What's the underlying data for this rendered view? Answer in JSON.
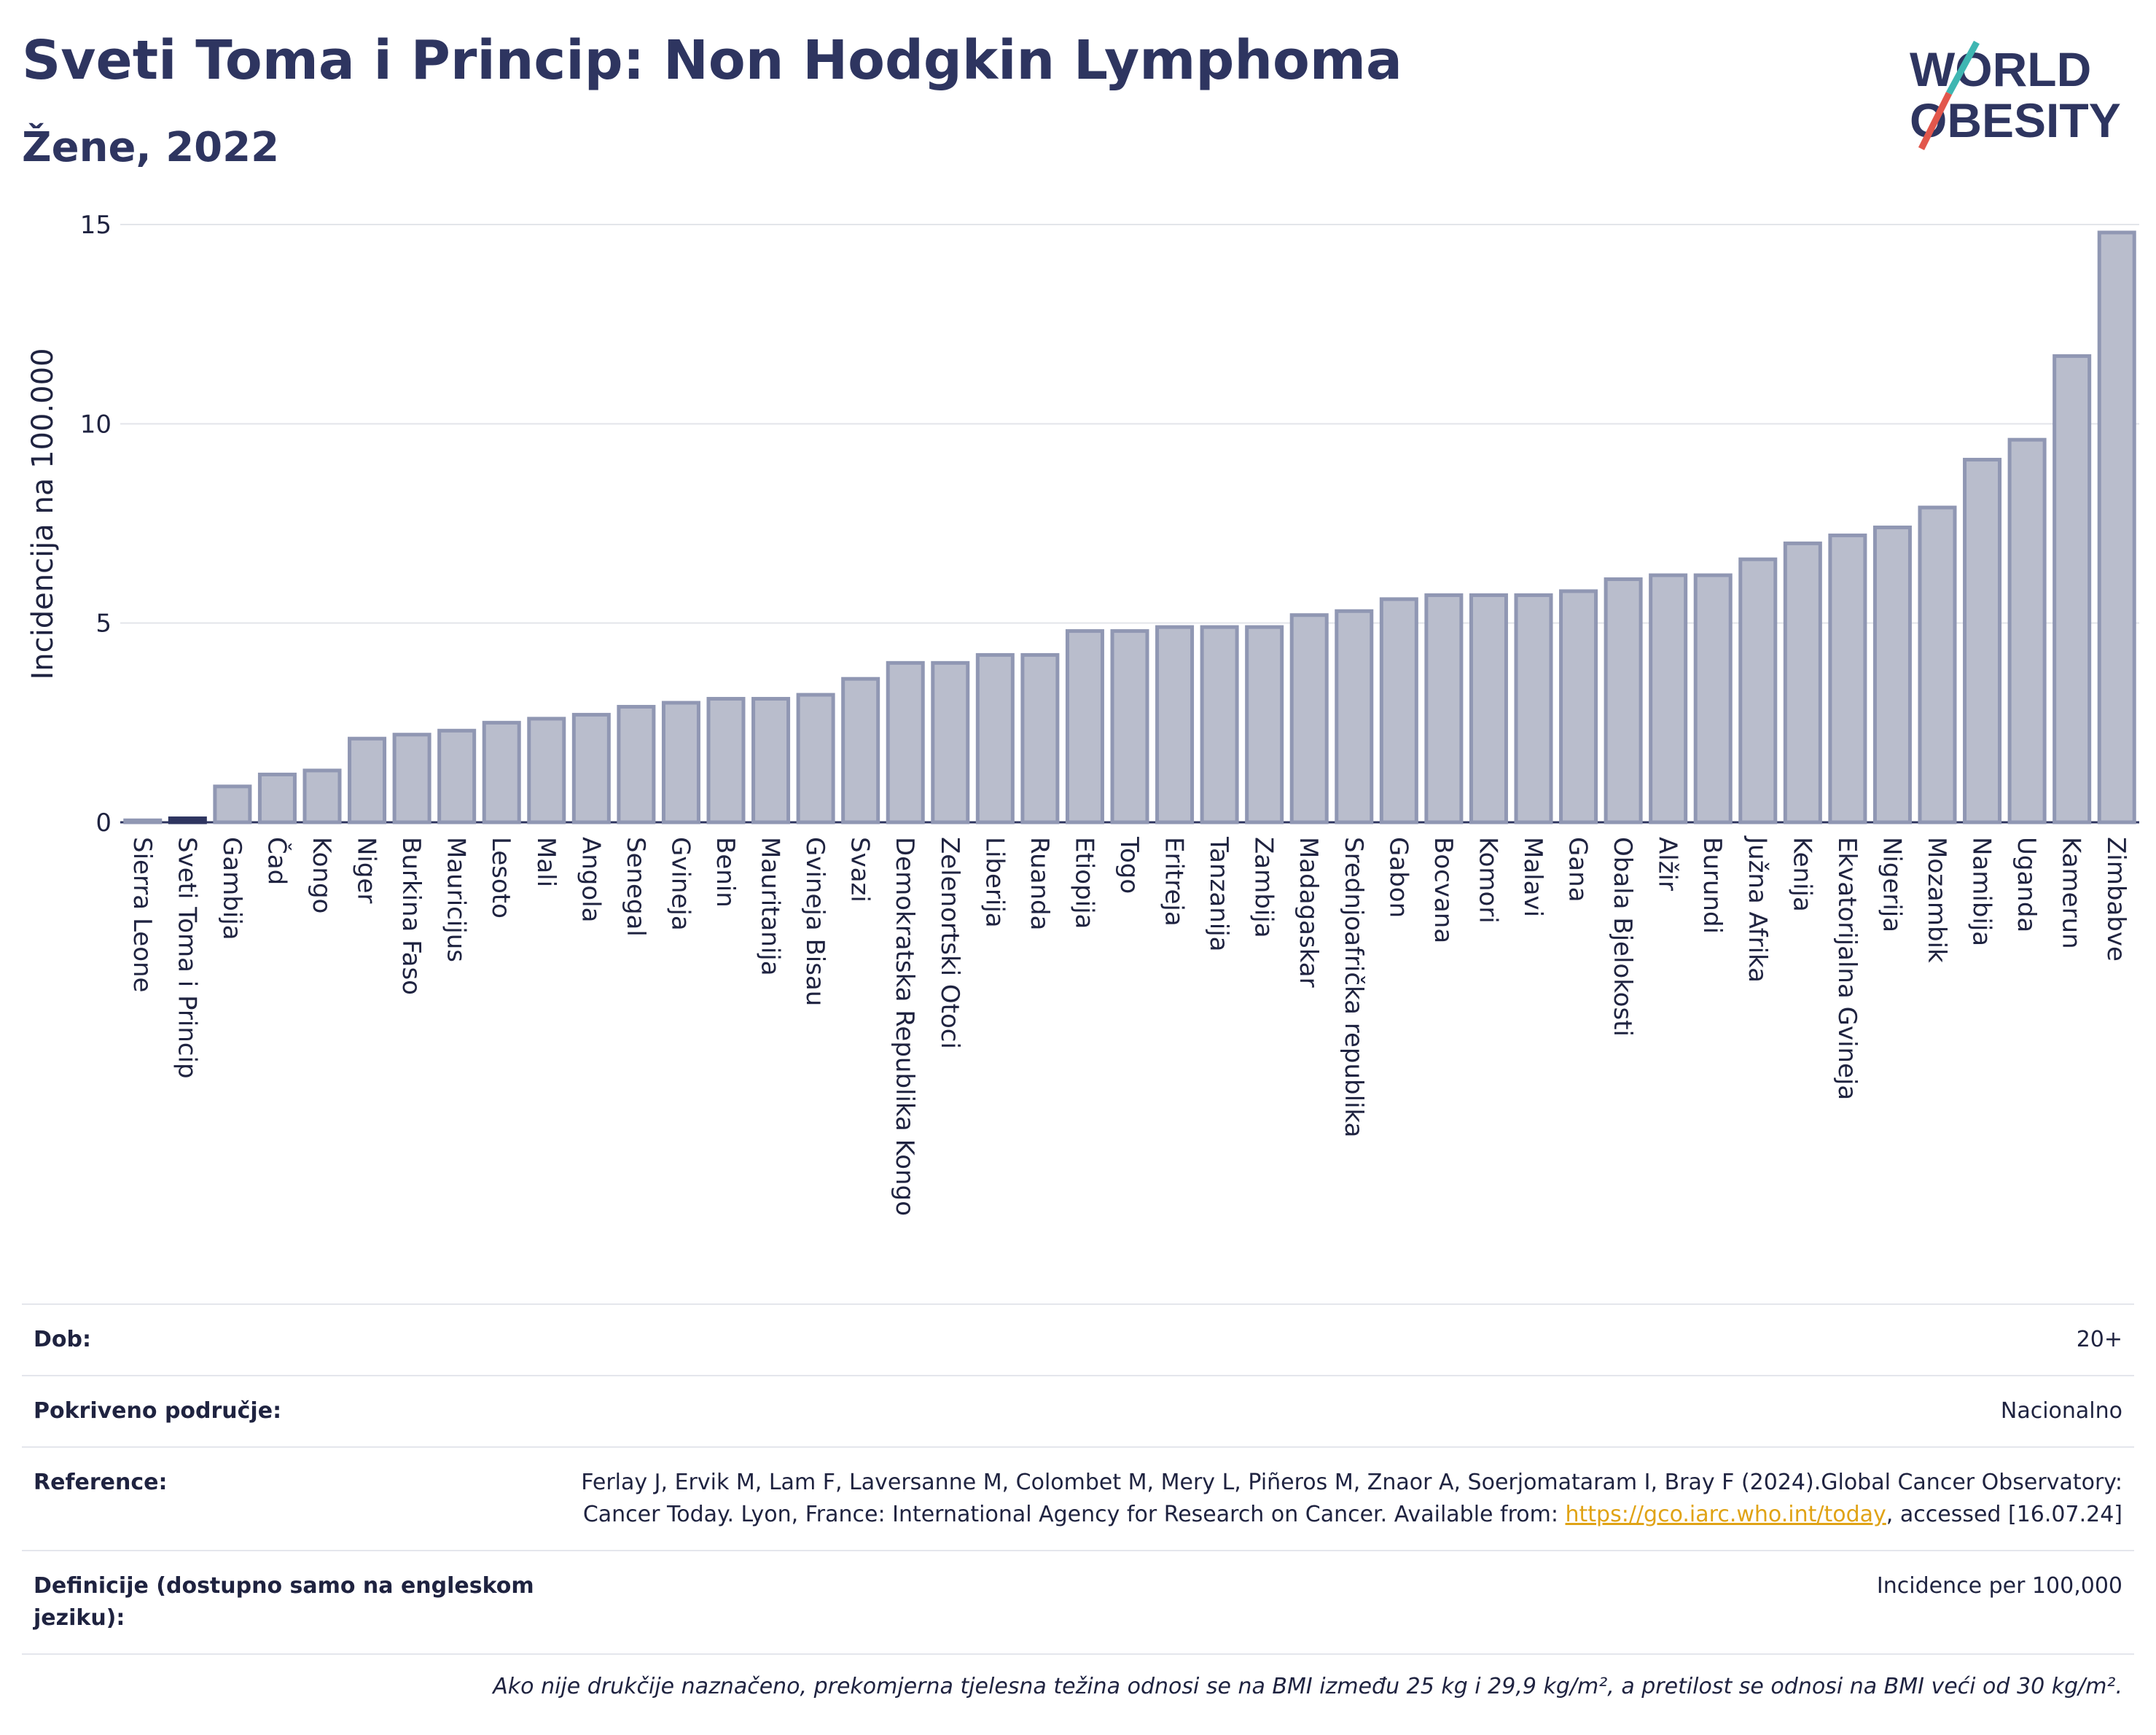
{
  "header": {
    "title": "Sveti Toma i Princip: Non Hodgkin Lymphoma",
    "subtitle": "Žene, 2022",
    "logo_line1": "WORLD",
    "logo_line2": "OBESITY"
  },
  "colors": {
    "bar": "#b9bdcc",
    "bar_stroke": "#9097b3",
    "highlight": "#2e3560",
    "title": "#2e3560",
    "logo_teal": "#3fb6b2",
    "logo_red": "#e2574c"
  },
  "chart_data": {
    "type": "bar",
    "ylabel": "Incidencija na 100.000",
    "ylim": [
      0,
      15
    ],
    "yticks": [
      0,
      5,
      10,
      15
    ],
    "grid": true,
    "highlight": "Sveti Toma i Princip",
    "categories": [
      "Sierra Leone",
      "Sveti Toma i Princip",
      "Gambija",
      "Čad",
      "Kongo",
      "Niger",
      "Burkina Faso",
      "Mauricijus",
      "Lesoto",
      "Mali",
      "Angola",
      "Senegal",
      "Gvineja",
      "Benin",
      "Mauritanija",
      "Gvineja Bisau",
      "Svazi",
      "Demokratska Republika Kongo",
      "Zelenortski Otoci",
      "Liberija",
      "Ruanda",
      "Etiopija",
      "Togo",
      "Eritreja",
      "Tanzanija",
      "Zambija",
      "Madagaskar",
      "Srednjoafrička republika",
      "Gabon",
      "Bocvana",
      "Komori",
      "Malavi",
      "Gana",
      "Obala Bjelokosti",
      "Alžir",
      "Burundi",
      "Južna Afrika",
      "Kenija",
      "Ekvatorijalna Gvineja",
      "Nigerija",
      "Mozambik",
      "Namibija",
      "Uganda",
      "Kamerun",
      "Zimbabve"
    ],
    "values": [
      0.05,
      0.1,
      0.9,
      1.2,
      1.3,
      2.1,
      2.2,
      2.3,
      2.5,
      2.6,
      2.7,
      2.9,
      3.0,
      3.1,
      3.1,
      3.2,
      3.6,
      4.0,
      4.0,
      4.2,
      4.2,
      4.8,
      4.8,
      4.9,
      4.9,
      4.9,
      5.2,
      5.3,
      5.6,
      5.7,
      5.7,
      5.7,
      5.8,
      6.1,
      6.2,
      6.2,
      6.6,
      7.0,
      7.2,
      7.4,
      7.9,
      9.1,
      9.6,
      11.7,
      14.8
    ]
  },
  "meta": {
    "rows": [
      {
        "label": "Dob:",
        "value": "20+"
      },
      {
        "label": "Pokriveno područje:",
        "value": "Nacionalno"
      },
      {
        "label": "Reference:",
        "value_pre": "Ferlay J, Ervik M, Lam F, Laversanne M, Colombet M, Mery L, Piñeros M, Znaor A, Soerjomataram I, Bray F (2024).Global Cancer Observatory: Cancer Today. Lyon, France: International Agency for Research on Cancer. Available from: ",
        "link": "https://gco.iarc.who.int/today",
        "value_post": ", accessed [16.07.24]"
      },
      {
        "label": "Definicije (dostupno samo na engleskom jeziku):",
        "value": "Incidence per 100,000"
      }
    ],
    "footnote": "Ako nije drukčije naznačeno, prekomjerna tjelesna težina odnosi se na BMI između 25 kg i 29,9 kg/m², a pretilost se odnosi na BMI veći od 30 kg/m²."
  }
}
